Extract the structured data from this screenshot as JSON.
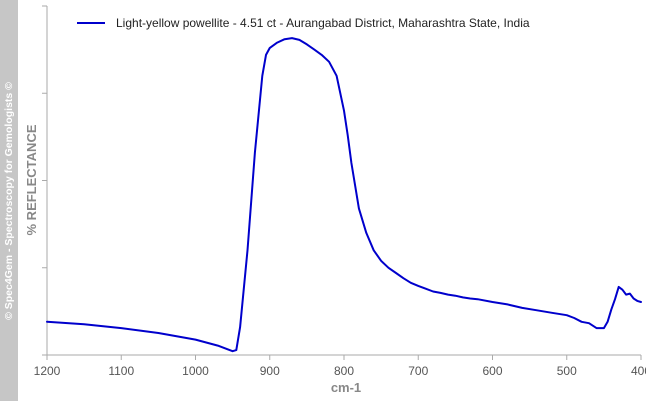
{
  "watermark": "© Spec4Gem - Spectroscopy for Gemologists ©",
  "chart_data": {
    "type": "line",
    "title": "",
    "xlabel": "cm-1",
    "ylabel": "% REFLECTANCE",
    "xlim": [
      1200,
      400
    ],
    "x_reversed": true,
    "ylim": [
      0,
      100
    ],
    "grid": false,
    "legend_position": "top-left",
    "x_ticks": [
      1200,
      1100,
      1000,
      900,
      800,
      700,
      600,
      500,
      400
    ],
    "y_ticks": [
      0,
      25,
      50,
      75,
      100
    ],
    "series": [
      {
        "name": "Light-yellow powellite - 4.51 ct - Aurangabad District, Maharashtra State, India",
        "color": "#0000cc",
        "x": [
          1200,
          1150,
          1100,
          1050,
          1000,
          970,
          950,
          945,
          940,
          930,
          920,
          910,
          905,
          900,
          890,
          880,
          870,
          860,
          850,
          840,
          830,
          820,
          810,
          800,
          795,
          790,
          780,
          770,
          760,
          750,
          740,
          730,
          720,
          710,
          700,
          690,
          680,
          670,
          660,
          650,
          640,
          630,
          620,
          600,
          580,
          560,
          540,
          520,
          500,
          490,
          480,
          470,
          460,
          450,
          445,
          440,
          435,
          430,
          425,
          420,
          415,
          410,
          405,
          400
        ],
        "y": [
          9.5,
          8.8,
          7.7,
          6.3,
          4.4,
          2.7,
          1.1,
          1.4,
          8.0,
          30.0,
          58.0,
          80.0,
          86.0,
          88.0,
          89.5,
          90.5,
          90.8,
          90.3,
          89.0,
          87.5,
          86.0,
          84.0,
          80.0,
          70.0,
          63.0,
          55.0,
          42.0,
          35.0,
          30.0,
          27.0,
          25.0,
          23.5,
          22.0,
          20.7,
          19.8,
          19.0,
          18.2,
          17.8,
          17.3,
          17.0,
          16.5,
          16.2,
          16.0,
          15.2,
          14.5,
          13.5,
          12.8,
          12.1,
          11.4,
          10.6,
          9.5,
          9.1,
          7.7,
          7.7,
          9.5,
          13.0,
          16.0,
          19.5,
          18.7,
          17.3,
          17.6,
          16.2,
          15.5,
          15.2
        ]
      }
    ]
  }
}
